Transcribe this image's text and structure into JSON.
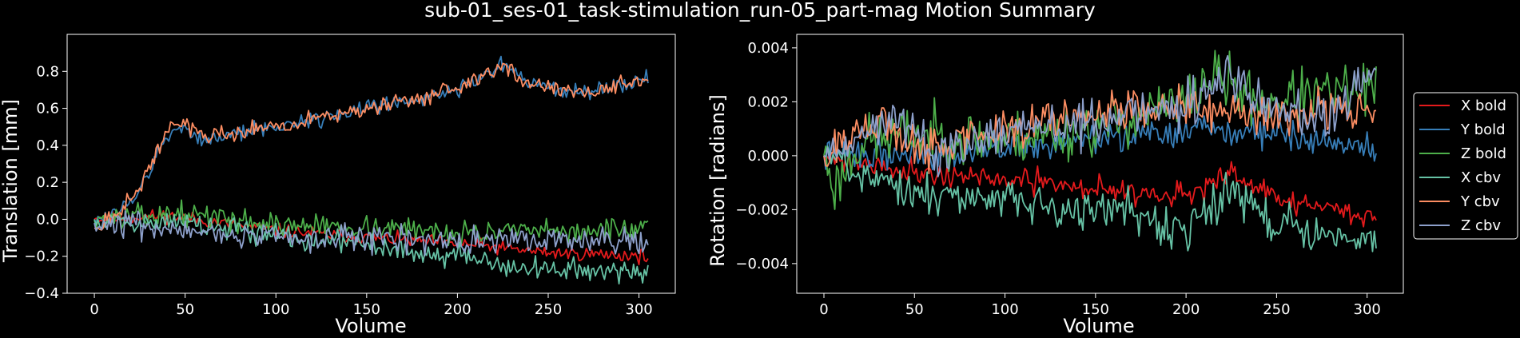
{
  "figure": {
    "title": "sub-01_ses-01_task-stimulation_run-05_part-mag Motion Summary",
    "background": "#000000",
    "foreground": "#ffffff"
  },
  "legend": {
    "placement": "right of second panel",
    "entries": [
      {
        "label": "X bold",
        "color": "#e41a1c"
      },
      {
        "label": "Y bold",
        "color": "#377eb8"
      },
      {
        "label": "Z bold",
        "color": "#4daf4a"
      },
      {
        "label": "X cbv",
        "color": "#66c2a5"
      },
      {
        "label": "Y cbv",
        "color": "#fc8d62"
      },
      {
        "label": "Z cbv",
        "color": "#8da0cb"
      }
    ]
  },
  "chart_data": [
    {
      "type": "line",
      "title": "",
      "xlabel": "Volume",
      "ylabel": "Translation [mm]",
      "xlim": [
        -15,
        320
      ],
      "ylim": [
        -0.4,
        1.0
      ],
      "xticks": [
        0,
        50,
        100,
        150,
        200,
        250,
        300
      ],
      "xtick_labels": [
        "0",
        "50",
        "100",
        "150",
        "200",
        "250",
        "300"
      ],
      "yticks": [
        -0.4,
        -0.2,
        0.0,
        0.2,
        0.4,
        0.6,
        0.8
      ],
      "ytick_labels": [
        "−0.4",
        "−0.2",
        "0.0",
        "0.2",
        "0.4",
        "0.6",
        "0.8"
      ],
      "grid": false,
      "n_volumes": 306,
      "series": [
        {
          "name": "X bold",
          "color": "#e41a1c",
          "seed": 11,
          "noise": 0.018,
          "trend": [
            [
              0,
              0.0
            ],
            [
              40,
              0.02
            ],
            [
              100,
              -0.06
            ],
            [
              150,
              -0.1
            ],
            [
              200,
              -0.13
            ],
            [
              250,
              -0.18
            ],
            [
              305,
              -0.2
            ]
          ]
        },
        {
          "name": "Y bold",
          "color": "#377eb8",
          "seed": 12,
          "noise": 0.022,
          "trend": [
            [
              0,
              0.0
            ],
            [
              10,
              0.02
            ],
            [
              25,
              0.15
            ],
            [
              40,
              0.45
            ],
            [
              50,
              0.5
            ],
            [
              60,
              0.43
            ],
            [
              100,
              0.5
            ],
            [
              150,
              0.6
            ],
            [
              200,
              0.7
            ],
            [
              225,
              0.84
            ],
            [
              240,
              0.73
            ],
            [
              270,
              0.68
            ],
            [
              305,
              0.75
            ]
          ]
        },
        {
          "name": "Z bold",
          "color": "#4daf4a",
          "seed": 13,
          "noise": 0.03,
          "trend": [
            [
              0,
              0.0
            ],
            [
              50,
              0.03
            ],
            [
              100,
              -0.03
            ],
            [
              150,
              -0.04
            ],
            [
              200,
              -0.07
            ],
            [
              250,
              -0.07
            ],
            [
              305,
              -0.05
            ]
          ]
        },
        {
          "name": "X cbv",
          "color": "#66c2a5",
          "seed": 14,
          "noise": 0.03,
          "trend": [
            [
              0,
              0.0
            ],
            [
              50,
              -0.02
            ],
            [
              100,
              -0.09
            ],
            [
              150,
              -0.14
            ],
            [
              200,
              -0.2
            ],
            [
              250,
              -0.28
            ],
            [
              305,
              -0.29
            ]
          ]
        },
        {
          "name": "Y cbv",
          "color": "#fc8d62",
          "seed": 15,
          "noise": 0.022,
          "trend": [
            [
              0,
              -0.05
            ],
            [
              10,
              0.0
            ],
            [
              25,
              0.17
            ],
            [
              40,
              0.48
            ],
            [
              50,
              0.52
            ],
            [
              60,
              0.45
            ],
            [
              100,
              0.5
            ],
            [
              150,
              0.6
            ],
            [
              200,
              0.7
            ],
            [
              225,
              0.84
            ],
            [
              240,
              0.73
            ],
            [
              270,
              0.68
            ],
            [
              305,
              0.76
            ]
          ]
        },
        {
          "name": "Z cbv",
          "color": "#8da0cb",
          "seed": 16,
          "noise": 0.035,
          "trend": [
            [
              0,
              -0.02
            ],
            [
              50,
              -0.05
            ],
            [
              100,
              -0.1
            ],
            [
              150,
              -0.1
            ],
            [
              200,
              -0.12
            ],
            [
              250,
              -0.12
            ],
            [
              305,
              -0.12
            ]
          ]
        }
      ]
    },
    {
      "type": "line",
      "title": "",
      "xlabel": "Volume",
      "ylabel": "Rotation [radians]",
      "xlim": [
        -15,
        320
      ],
      "ylim": [
        -0.0051,
        0.0045
      ],
      "xticks": [
        0,
        50,
        100,
        150,
        200,
        250,
        300
      ],
      "xtick_labels": [
        "0",
        "50",
        "100",
        "150",
        "200",
        "250",
        "300"
      ],
      "yticks": [
        -0.004,
        -0.002,
        0.0,
        0.002,
        0.004
      ],
      "ytick_labels": [
        "−0.004",
        "−0.002",
        "0.000",
        "0.002",
        "0.004"
      ],
      "grid": false,
      "n_volumes": 306,
      "series": [
        {
          "name": "X bold",
          "color": "#e41a1c",
          "seed": 21,
          "noise": 0.00022,
          "trend": [
            [
              0,
              0.0
            ],
            [
              50,
              -0.0006
            ],
            [
              100,
              -0.0009
            ],
            [
              150,
              -0.0012
            ],
            [
              200,
              -0.0015
            ],
            [
              225,
              -0.0007
            ],
            [
              250,
              -0.0016
            ],
            [
              305,
              -0.0023
            ]
          ]
        },
        {
          "name": "Y bold",
          "color": "#377eb8",
          "seed": 22,
          "noise": 0.00028,
          "trend": [
            [
              0,
              0.0
            ],
            [
              50,
              0.0001
            ],
            [
              100,
              0.0003
            ],
            [
              150,
              0.0006
            ],
            [
              200,
              0.0009
            ],
            [
              250,
              0.0009
            ],
            [
              305,
              0.0002
            ]
          ]
        },
        {
          "name": "Z bold",
          "color": "#4daf4a",
          "seed": 23,
          "noise": 0.0005,
          "trend": [
            [
              0,
              0.0
            ],
            [
              6,
              -0.0012
            ],
            [
              20,
              0.0005
            ],
            [
              50,
              0.0008
            ],
            [
              100,
              0.0006
            ],
            [
              150,
              0.001
            ],
            [
              200,
              0.002
            ],
            [
              215,
              0.003
            ],
            [
              240,
              0.002
            ],
            [
              305,
              0.0025
            ]
          ]
        },
        {
          "name": "X cbv",
          "color": "#66c2a5",
          "seed": 24,
          "noise": 0.00038,
          "trend": [
            [
              0,
              0.0
            ],
            [
              50,
              -0.0014
            ],
            [
              100,
              -0.0017
            ],
            [
              150,
              -0.0019
            ],
            [
              200,
              -0.0028
            ],
            [
              225,
              -0.0012
            ],
            [
              250,
              -0.0026
            ],
            [
              305,
              -0.0033
            ]
          ]
        },
        {
          "name": "Y cbv",
          "color": "#fc8d62",
          "seed": 25,
          "noise": 0.00038,
          "trend": [
            [
              0,
              0.0
            ],
            [
              30,
              0.0012
            ],
            [
              50,
              0.0003
            ],
            [
              100,
              0.001
            ],
            [
              150,
              0.0015
            ],
            [
              200,
              0.0018
            ],
            [
              250,
              0.0015
            ],
            [
              305,
              0.0018
            ]
          ]
        },
        {
          "name": "Z cbv",
          "color": "#8da0cb",
          "seed": 26,
          "noise": 0.00042,
          "trend": [
            [
              0,
              0.0
            ],
            [
              40,
              0.0016
            ],
            [
              60,
              0.0
            ],
            [
              100,
              0.0009
            ],
            [
              150,
              0.0013
            ],
            [
              200,
              0.0018
            ],
            [
              220,
              0.003
            ],
            [
              250,
              0.0016
            ],
            [
              280,
              0.0015
            ],
            [
              305,
              0.0033
            ]
          ]
        }
      ]
    }
  ]
}
